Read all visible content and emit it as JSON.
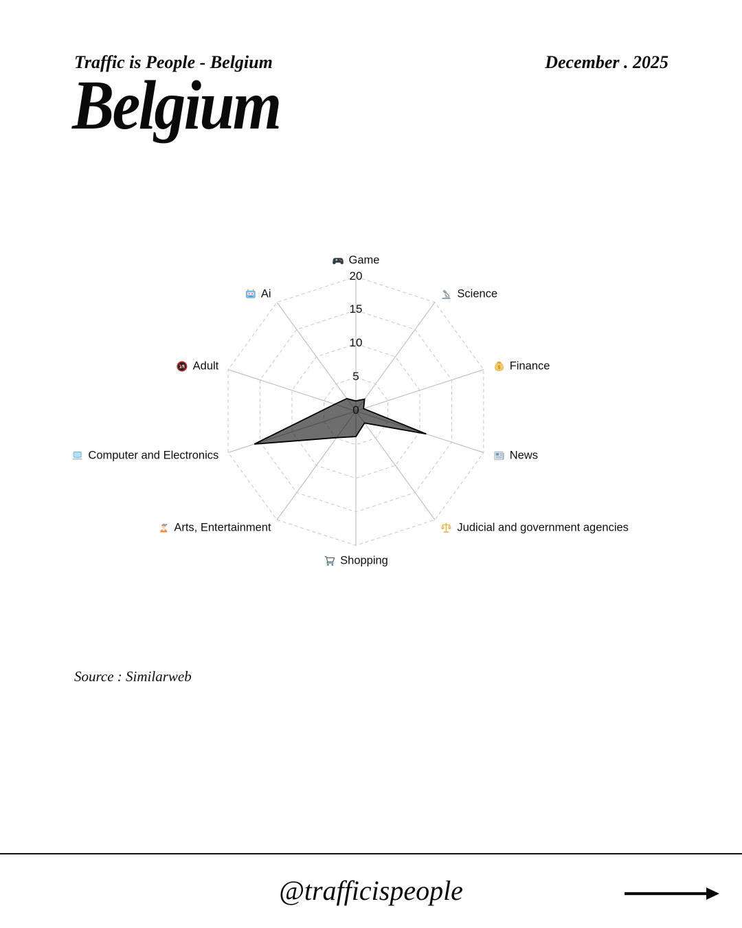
{
  "header": {
    "kicker": "Traffic is People - Belgium",
    "date": "December . 2025",
    "title": "Belgium"
  },
  "chart_data": {
    "type": "radar",
    "title": "Belgium traffic categories radar",
    "categories": [
      {
        "label": "Game",
        "icon": "game-icon"
      },
      {
        "label": "Science",
        "icon": "science-icon"
      },
      {
        "label": "Finance",
        "icon": "finance-icon"
      },
      {
        "label": "News",
        "icon": "news-icon"
      },
      {
        "label": "Judicial and government agencies",
        "icon": "judicial-icon"
      },
      {
        "label": "Shopping",
        "icon": "shopping-icon"
      },
      {
        "label": "Arts, Entertainment",
        "icon": "arts-icon"
      },
      {
        "label": "Computer and Electronics",
        "icon": "computer-icon"
      },
      {
        "label": "Adult",
        "icon": "adult-icon"
      },
      {
        "label": "Ai",
        "icon": "ai-icon"
      }
    ],
    "values": [
      1.5,
      2.2,
      1.2,
      11.0,
      2.2,
      3.8,
      4.9,
      15.9,
      3.3,
      2.3
    ],
    "rticks": [
      0,
      5,
      10,
      15,
      20
    ],
    "rlim": [
      0,
      20
    ],
    "start_angle_deg": 90,
    "direction": "clockwise",
    "grid": true,
    "legend_position": "none",
    "fill_color": "#000000",
    "fill_opacity": 0.57,
    "stroke_color": "#000000",
    "ring_color": "#c6c6c6",
    "spoke_color": "#b7b7b7"
  },
  "footer": {
    "source": "Source : Similarweb",
    "handle": "@trafficispeople"
  }
}
